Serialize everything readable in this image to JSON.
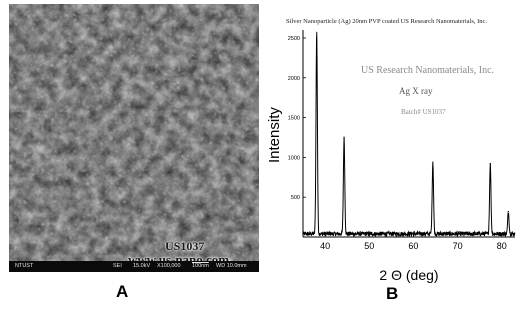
{
  "panel_a": {
    "label": "A",
    "watermark_code": "US1037",
    "watermark_url": "www.us-nano.com",
    "infobar": {
      "lab": "NTUST",
      "detector": "SEI",
      "voltage": "15.0kV",
      "magnification": "X100,000",
      "scale": "100nm",
      "wd": "WD 10.0mm"
    }
  },
  "panel_b": {
    "label": "B",
    "header": "Silver Nanoparticle (Ag) 20nm PVP coated     US Research Nanomaterials, Inc.",
    "company": "US Research Nanomaterials, Inc.",
    "subtitle": "Ag  X ray",
    "batch": "Batch# US1037"
  },
  "chart_data": {
    "type": "line",
    "title": "Ag  X ray",
    "xlabel": "2 Θ (deg)",
    "ylabel": "Intensity",
    "xlim": [
      35,
      83
    ],
    "ylim": [
      0,
      2600
    ],
    "x_ticks": [
      40,
      50,
      60,
      70,
      80
    ],
    "y_ticks": [
      500,
      1000,
      1500,
      2000,
      2500
    ],
    "y_tick_labels": [
      "500",
      "1000",
      "1500",
      "2000",
      "2500"
    ],
    "baseline": 40,
    "peaks": [
      {
        "x": 38.1,
        "y": 2570
      },
      {
        "x": 44.3,
        "y": 1240
      },
      {
        "x": 64.4,
        "y": 940
      },
      {
        "x": 77.4,
        "y": 920
      },
      {
        "x": 81.5,
        "y": 320
      }
    ],
    "grid": false,
    "color": "#000000"
  }
}
